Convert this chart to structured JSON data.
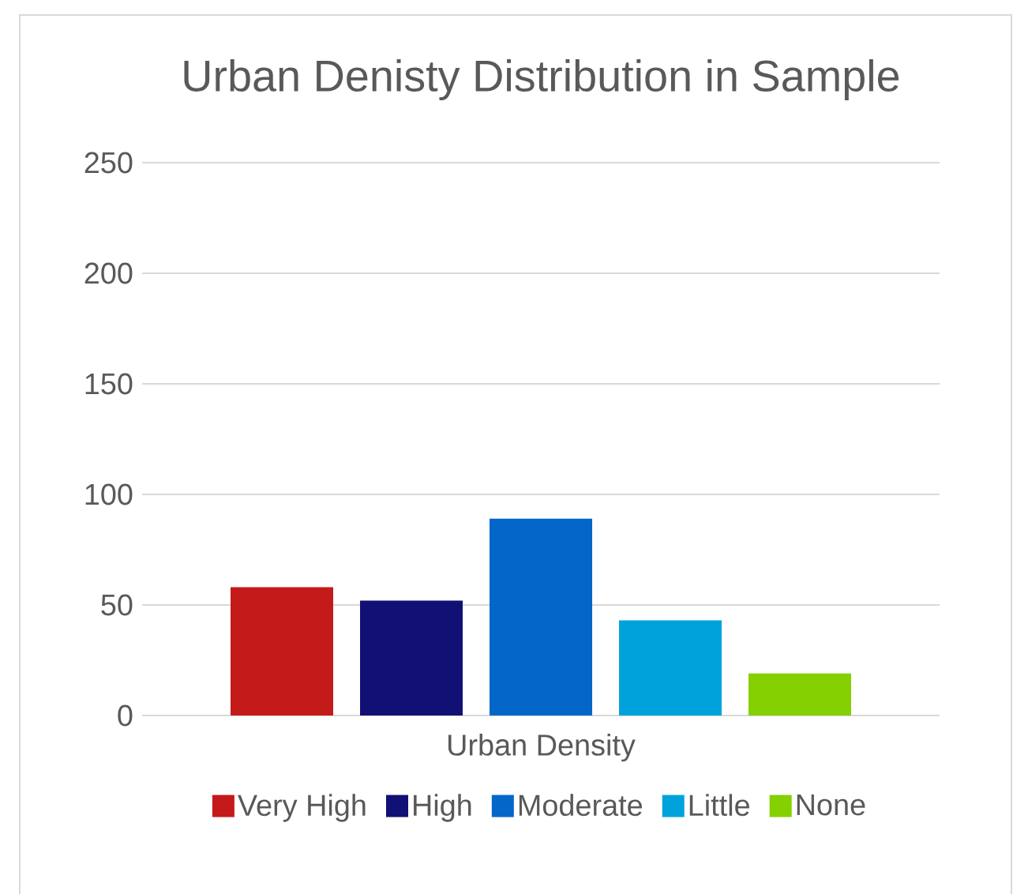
{
  "chart_data": {
    "type": "bar",
    "title": "Urban Denisty Distribution in Sample",
    "categories": [
      "Urban Density"
    ],
    "series": [
      {
        "name": "Very High",
        "color": "#c41a1a",
        "values": [
          58
        ]
      },
      {
        "name": "High",
        "color": "#111175",
        "values": [
          52
        ]
      },
      {
        "name": "Moderate",
        "color": "#0366c9",
        "values": [
          89
        ]
      },
      {
        "name": "Little",
        "color": "#00a2dc",
        "values": [
          43
        ]
      },
      {
        "name": "None",
        "color": "#84d000",
        "values": [
          19
        ]
      }
    ],
    "ylim": [
      0,
      250
    ],
    "yticks": [
      0,
      50,
      100,
      150,
      200,
      250
    ],
    "grid": "y",
    "legend": "bottom"
  }
}
